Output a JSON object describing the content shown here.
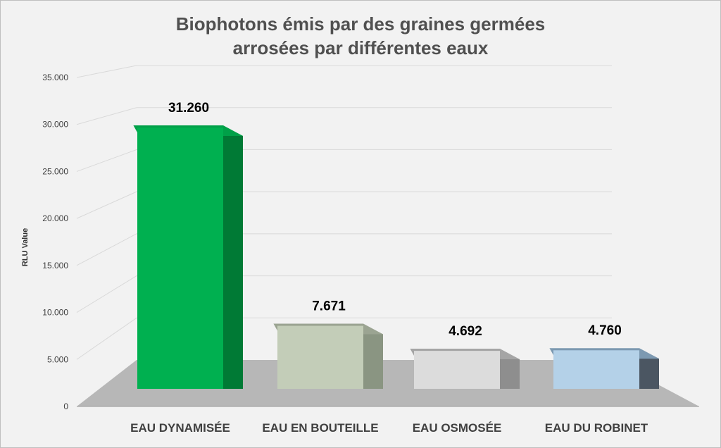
{
  "chart_data": {
    "type": "bar",
    "title": [
      "Biophotons émis par des graines germées",
      "arrosées par différentes eaux"
    ],
    "ylabel": "RLU Value",
    "xlabel": "",
    "categories": [
      "EAU DYNAMISÉE",
      "EAU EN BOUTEILLE",
      "EAU OSMOSÉE",
      "EAU DU ROBINET"
    ],
    "values": [
      31260,
      7671,
      4692,
      4760
    ],
    "value_labels": [
      "31.260",
      "7.671",
      "4.692",
      "4.760"
    ],
    "ylim": [
      0,
      35000
    ],
    "yticks": [
      0,
      5000,
      10000,
      15000,
      20000,
      25000,
      30000,
      35000
    ],
    "ytick_labels": [
      "0",
      "5.000",
      "10.000",
      "15.000",
      "20.000",
      "25.000",
      "30.000",
      "35.000"
    ],
    "grid": true,
    "legend": "none",
    "style": "3d",
    "colors": {
      "background": "#f2f2f2",
      "floor": "#b7b7b7",
      "gridline": "#d9d9d9",
      "bars": [
        {
          "front": "#00b050",
          "side": "#007a35",
          "top": "#00a048"
        },
        {
          "front": "#c3cdb8",
          "side": "#8a9582",
          "top": "#9ba492"
        },
        {
          "front": "#dcdcdc",
          "side": "#8e8e8e",
          "top": "#a5a5a5"
        },
        {
          "front": "#b4d1e8",
          "side": "#4b5662",
          "top": "#7c99b1"
        }
      ]
    }
  }
}
